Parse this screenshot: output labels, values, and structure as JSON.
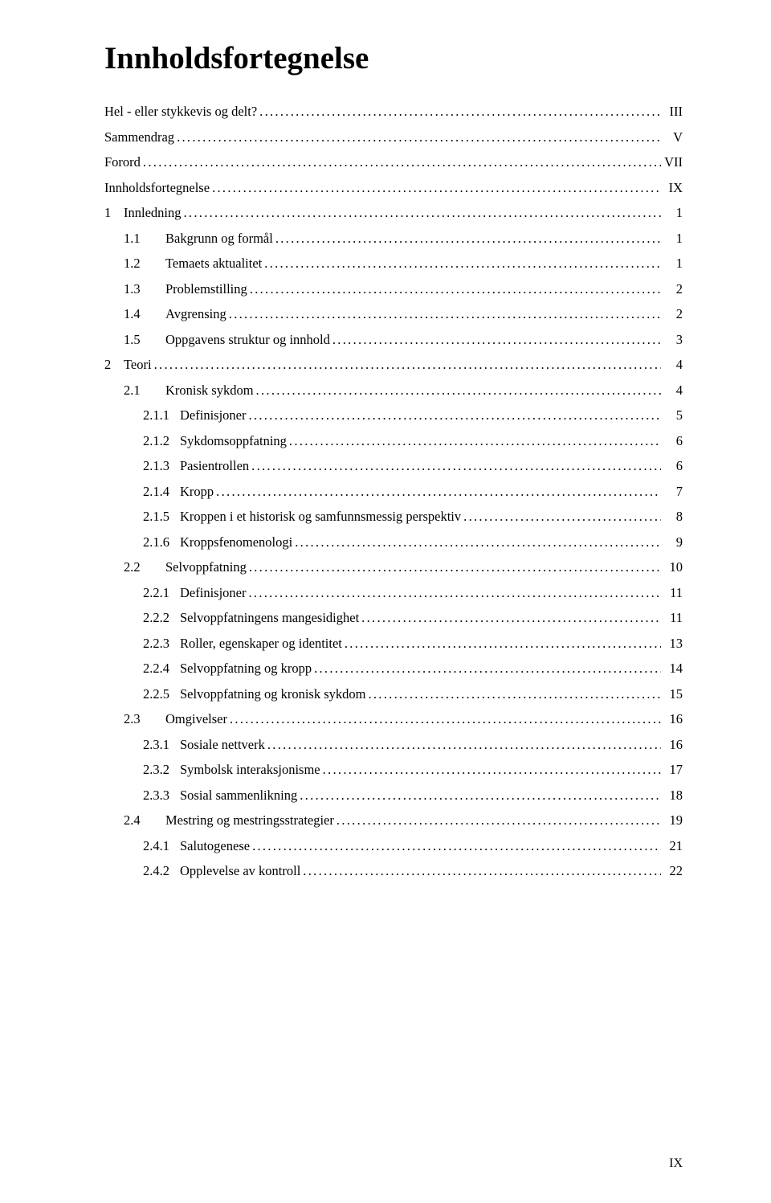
{
  "title": "Innholdsfortegnelse",
  "pageNumber": "IX",
  "entries": [
    {
      "indent": 0,
      "num": "",
      "label": "Hel - eller stykkevis og delt?",
      "page": "III"
    },
    {
      "indent": 0,
      "num": "",
      "label": "Sammendrag",
      "page": "V"
    },
    {
      "indent": 0,
      "num": "",
      "label": "Forord",
      "page": "VII"
    },
    {
      "indent": 0,
      "num": "",
      "label": "Innholdsfortegnelse",
      "page": "IX"
    },
    {
      "indent": 0,
      "num": "1",
      "label": "Innledning",
      "page": "1"
    },
    {
      "indent": 1,
      "num": "1.1",
      "label": "Bakgrunn og formål",
      "page": "1"
    },
    {
      "indent": 1,
      "num": "1.2",
      "label": "Temaets aktualitet",
      "page": "1"
    },
    {
      "indent": 1,
      "num": "1.3",
      "label": "Problemstilling",
      "page": "2"
    },
    {
      "indent": 1,
      "num": "1.4",
      "label": "Avgrensing",
      "page": "2"
    },
    {
      "indent": 1,
      "num": "1.5",
      "label": "Oppgavens struktur og innhold",
      "page": "3"
    },
    {
      "indent": 0,
      "num": "2",
      "label": "Teori",
      "page": "4"
    },
    {
      "indent": 1,
      "num": "2.1",
      "label": "Kronisk sykdom",
      "page": "4"
    },
    {
      "indent": 2,
      "num": "2.1.1",
      "label": "Definisjoner",
      "page": "5"
    },
    {
      "indent": 2,
      "num": "2.1.2",
      "label": "Sykdomsoppfatning",
      "page": "6"
    },
    {
      "indent": 2,
      "num": "2.1.3",
      "label": "Pasientrollen",
      "page": "6"
    },
    {
      "indent": 2,
      "num": "2.1.4",
      "label": "Kropp",
      "page": "7"
    },
    {
      "indent": 2,
      "num": "2.1.5",
      "label": "Kroppen i et historisk og samfunnsmessig perspektiv",
      "page": "8"
    },
    {
      "indent": 2,
      "num": "2.1.6",
      "label": "Kroppsfenomenologi",
      "page": "9"
    },
    {
      "indent": 1,
      "num": "2.2",
      "label": "Selvoppfatning",
      "page": "10"
    },
    {
      "indent": 2,
      "num": "2.2.1",
      "label": "Definisjoner",
      "page": "11"
    },
    {
      "indent": 2,
      "num": "2.2.2",
      "label": "Selvoppfatningens mangesidighet",
      "page": "11"
    },
    {
      "indent": 2,
      "num": "2.2.3",
      "label": "Roller, egenskaper og identitet",
      "page": "13"
    },
    {
      "indent": 2,
      "num": "2.2.4",
      "label": "Selvoppfatning og kropp",
      "page": "14"
    },
    {
      "indent": 2,
      "num": "2.2.5",
      "label": "Selvoppfatning og kronisk sykdom",
      "page": "15"
    },
    {
      "indent": 1,
      "num": "2.3",
      "label": "Omgivelser",
      "page": "16"
    },
    {
      "indent": 2,
      "num": "2.3.1",
      "label": "Sosiale nettverk",
      "page": "16"
    },
    {
      "indent": 2,
      "num": "2.3.2",
      "label": "Symbolsk interaksjonisme",
      "page": "17"
    },
    {
      "indent": 2,
      "num": "2.3.3",
      "label": "Sosial sammenlikning",
      "page": "18"
    },
    {
      "indent": 1,
      "num": "2.4",
      "label": "Mestring og mestringsstrategier",
      "page": "19"
    },
    {
      "indent": 2,
      "num": "2.4.1",
      "label": "Salutogenese",
      "page": "21"
    },
    {
      "indent": 2,
      "num": "2.4.2",
      "label": "Opplevelse av kontroll",
      "page": "22"
    }
  ]
}
